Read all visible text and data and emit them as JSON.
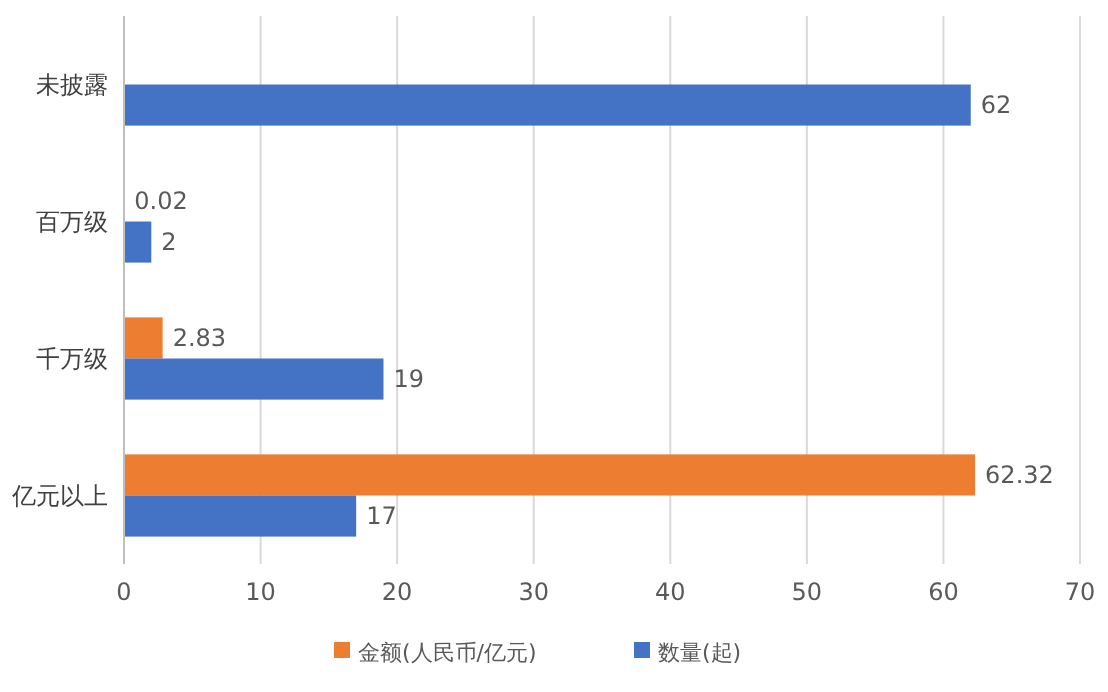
{
  "chart_data": {
    "type": "bar",
    "orientation": "horizontal",
    "categories": [
      "未披露",
      "百万级",
      "千万级",
      "亿元以上"
    ],
    "series": [
      {
        "name": "金额(人民币/亿元)",
        "color": "#ed7d31",
        "values": [
          null,
          0.02,
          2.83,
          62.32
        ]
      },
      {
        "name": "数量(起)",
        "color": "#4472c4",
        "values": [
          62,
          2,
          19,
          17
        ]
      }
    ],
    "xlim": [
      0,
      70
    ],
    "xticks": [
      0,
      10,
      20,
      30,
      40,
      50,
      60,
      70
    ],
    "grid": "x",
    "legend": "bottom",
    "data_labels": true
  }
}
